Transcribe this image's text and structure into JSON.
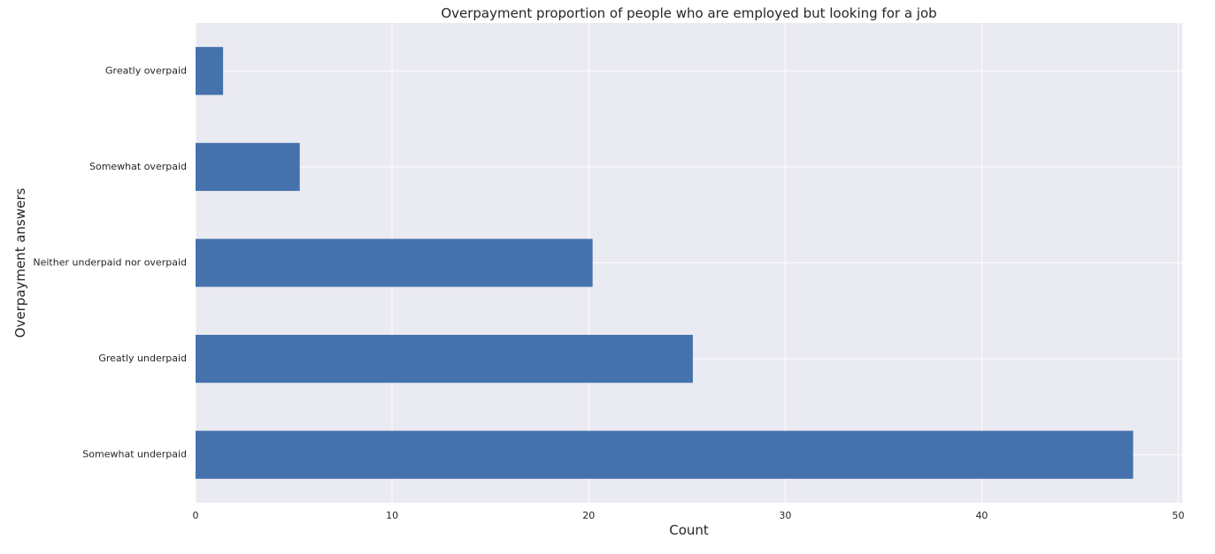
{
  "chart_data": {
    "type": "bar",
    "orientation": "horizontal",
    "title": "Overpayment proportion of people who are employed but looking for a job",
    "xlabel": "Count",
    "ylabel": "Overpayment answers",
    "categories": [
      "Greatly overpaid",
      "Somewhat overpaid",
      "Neither underpaid nor overpaid",
      "Greatly underpaid",
      "Somewhat underpaid"
    ],
    "values": [
      1.4,
      5.3,
      20.2,
      25.3,
      47.7
    ],
    "xlim": [
      0,
      50.2
    ],
    "xticks": [
      0,
      10,
      20,
      30,
      40,
      50
    ],
    "grid": true,
    "bar_color": "#4572ad",
    "background_color": "#eaeaf2",
    "grid_color": "#ffffff"
  }
}
